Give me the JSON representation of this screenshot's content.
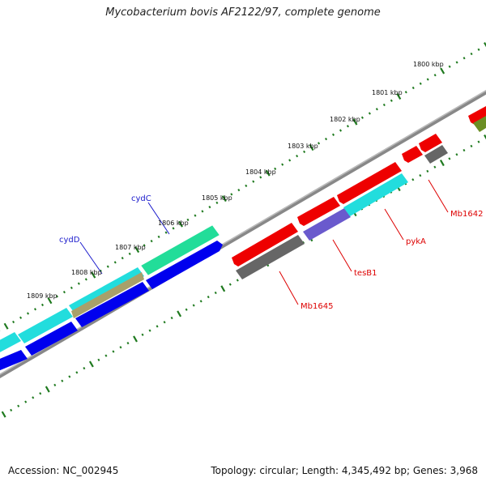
{
  "title": "Mycobacterium bovis AF2122/97, complete genome",
  "footer": {
    "accession": "Accession: NC_002945",
    "summary": "Topology: circular; Length: 4,345,492 bp; Genes: 3,968"
  },
  "scale_labels": [
    "1800 kbp",
    "1801 kbp",
    "1802 kbp",
    "1803 kbp",
    "1804 kbp",
    "1805 kbp",
    "1806 kbp",
    "1807 kbp",
    "1808 kbp",
    "1809 kbp"
  ],
  "gene_labels": {
    "cydC": "cydC",
    "cydD": "cydD",
    "Mb1642": "Mb1642",
    "pykA": "pykA",
    "tesB1": "tesB1",
    "Mb1645": "Mb1645"
  },
  "colors": {
    "label_forward": "#1a1acc",
    "label_reverse": "#dd0000",
    "tick": "#1f7a1f",
    "backbone": "#888888",
    "red": "#ee0000",
    "blue": "#0000ee",
    "cyan": "#22dddd",
    "seagreen": "#22dd99",
    "gray": "#666666",
    "slate": "#6a5acd",
    "olive": "#6b8e23",
    "khaki": "#a8a06a"
  }
}
